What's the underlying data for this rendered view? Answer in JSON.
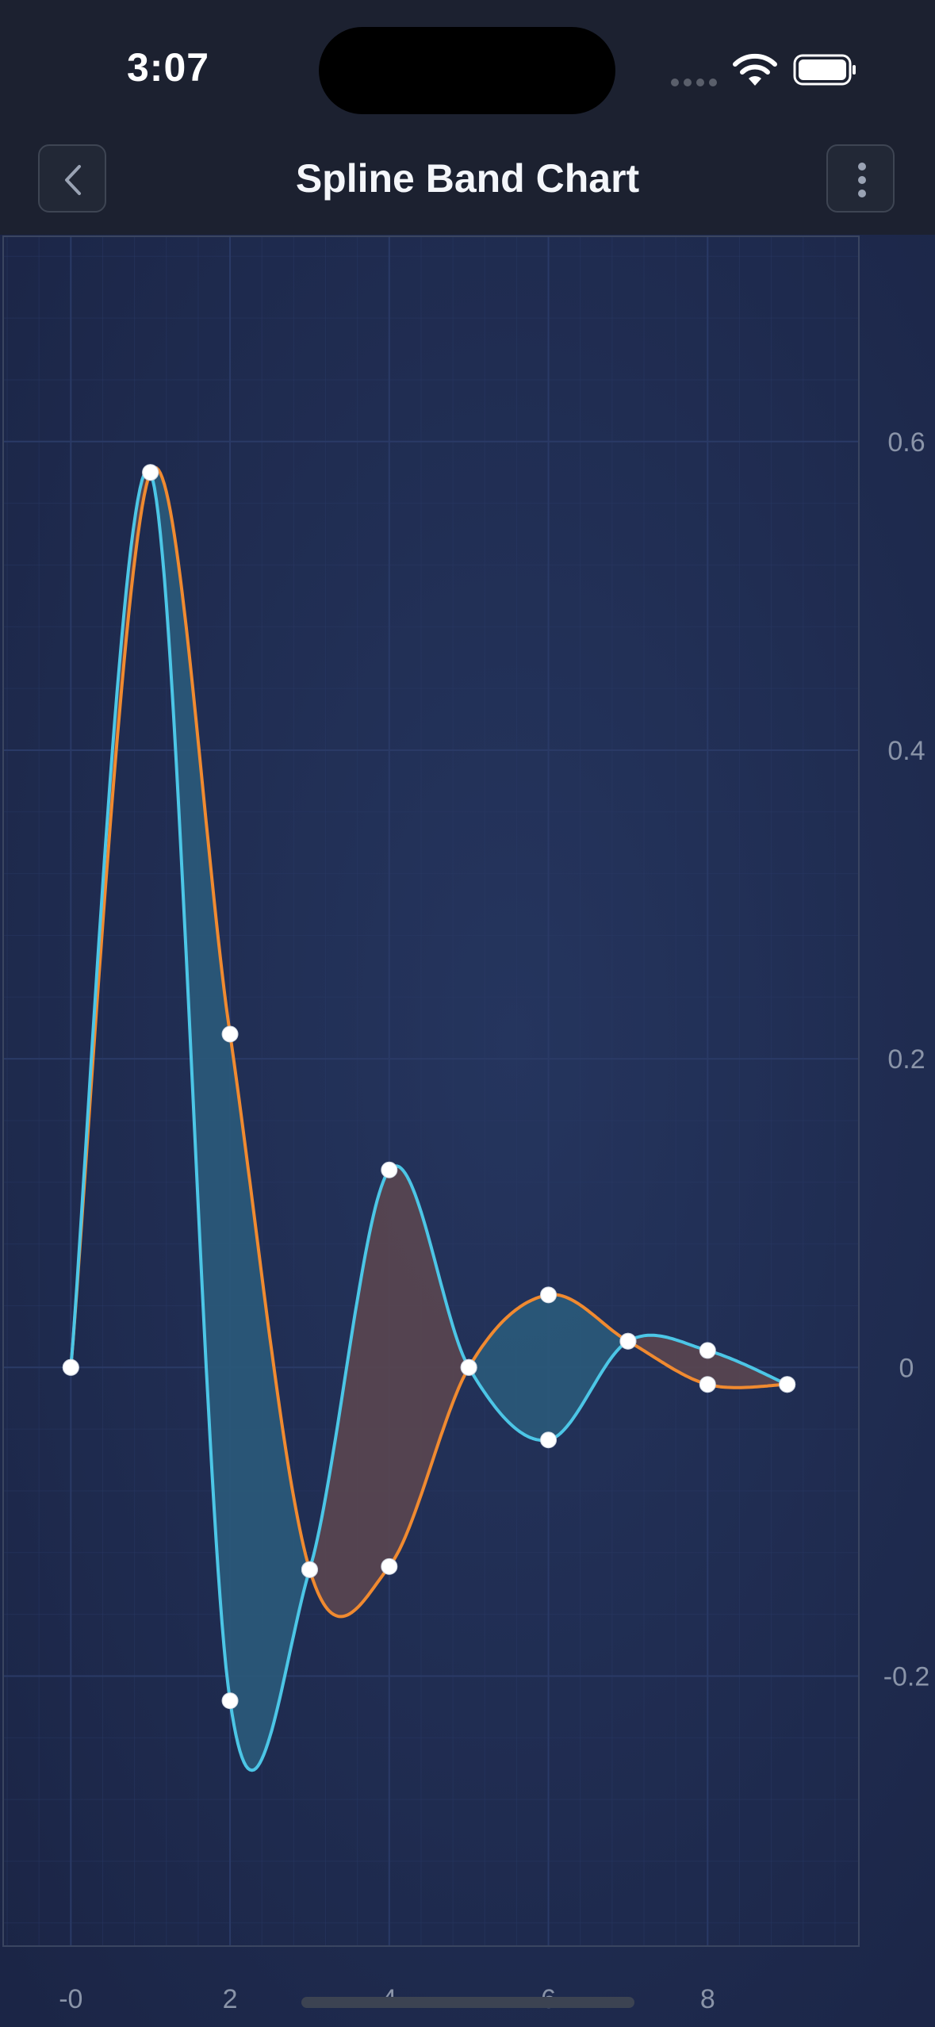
{
  "status_bar": {
    "time": "3:07"
  },
  "nav": {
    "title": "Spline Band Chart"
  },
  "icons": {
    "back": "chevron-left-icon",
    "menu": "more-vertical-icon",
    "wifi": "wifi-icon",
    "battery": "battery-icon"
  },
  "colors": {
    "series1": "#4cc6e6",
    "series2": "#f08a30",
    "band_up": "#2a5a7a",
    "band_down": "#5a4650",
    "marker": "#ffffff",
    "grid": "#2a3a66",
    "axis_text": "#8a94a8"
  },
  "chart_data": {
    "type": "line",
    "subtype": "spline-band",
    "x": [
      0,
      1,
      2,
      3,
      4,
      5,
      6,
      7,
      8,
      9
    ],
    "series": [
      {
        "values": [
          0,
          0.58,
          -0.216,
          -0.131,
          0.128,
          0,
          -0.047,
          0.017,
          0.011,
          -0.011
        ]
      },
      {
        "values": [
          0,
          0.58,
          0.216,
          -0.131,
          -0.129,
          0,
          0.047,
          0.017,
          -0.011,
          -0.011
        ]
      }
    ],
    "x_ticks": [
      {
        "value": 0,
        "label": "-0"
      },
      {
        "value": 2,
        "label": "2"
      },
      {
        "value": 4,
        "label": "4"
      },
      {
        "value": 6,
        "label": "6"
      },
      {
        "value": 8,
        "label": "8"
      }
    ],
    "y_ticks": [
      {
        "value": 0.6,
        "label": "0.6"
      },
      {
        "value": 0.4,
        "label": "0.4"
      },
      {
        "value": 0.2,
        "label": "0.2"
      },
      {
        "value": 0,
        "label": "0"
      },
      {
        "value": -0.2,
        "label": "-0.2"
      }
    ],
    "xlim": [
      -0.85,
      9.9
    ],
    "ylim": [
      -0.375,
      0.733
    ],
    "grid": true,
    "y_axis_position": "right",
    "x_axis_position": "bottom"
  }
}
